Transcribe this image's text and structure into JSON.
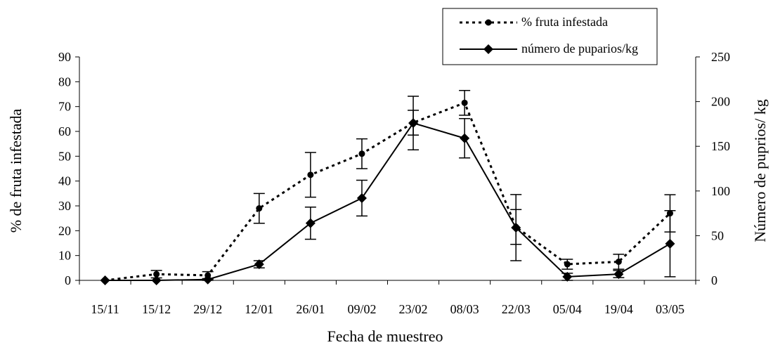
{
  "chart_data": {
    "type": "line",
    "xlabel": "Fecha de muestreo",
    "ylabel_left": "% de fruta infestada",
    "ylabel_right": "Número de puprios/ kg",
    "categories": [
      "15/11",
      "15/12",
      "29/12",
      "12/01",
      "26/01",
      "09/02",
      "23/02",
      "08/03",
      "22/03",
      "05/04",
      "19/04",
      "03/05"
    ],
    "y_left": {
      "min": 0,
      "max": 90,
      "step": 10,
      "ticks": [
        "0",
        "10",
        "20",
        "30",
        "40",
        "50",
        "60",
        "70",
        "80",
        "90"
      ]
    },
    "y_right": {
      "min": 0,
      "max": 250,
      "step": 50,
      "ticks": [
        "0",
        "50",
        "100",
        "150",
        "200",
        "250"
      ]
    },
    "series": [
      {
        "name": "% fruta infestada",
        "axis": "left",
        "style": "dotted",
        "marker": "circle",
        "values": [
          0,
          2.5,
          2,
          29,
          42.5,
          51,
          63.5,
          71.5,
          21.5,
          6.5,
          7.5,
          27
        ],
        "error": [
          0,
          1.5,
          1.5,
          6,
          9,
          6,
          5,
          5,
          7,
          2,
          3,
          7.5
        ]
      },
      {
        "name": "número de puparios/kg",
        "axis": "right",
        "style": "solid",
        "marker": "diamond",
        "values": [
          0,
          0,
          1,
          18,
          64,
          92,
          176,
          159,
          59,
          4,
          7,
          41
        ],
        "error": [
          0,
          0,
          1,
          4,
          18,
          20,
          30,
          22,
          37,
          4,
          4,
          37
        ]
      }
    ],
    "legend": {
      "position": "top-right"
    },
    "grid": false
  }
}
